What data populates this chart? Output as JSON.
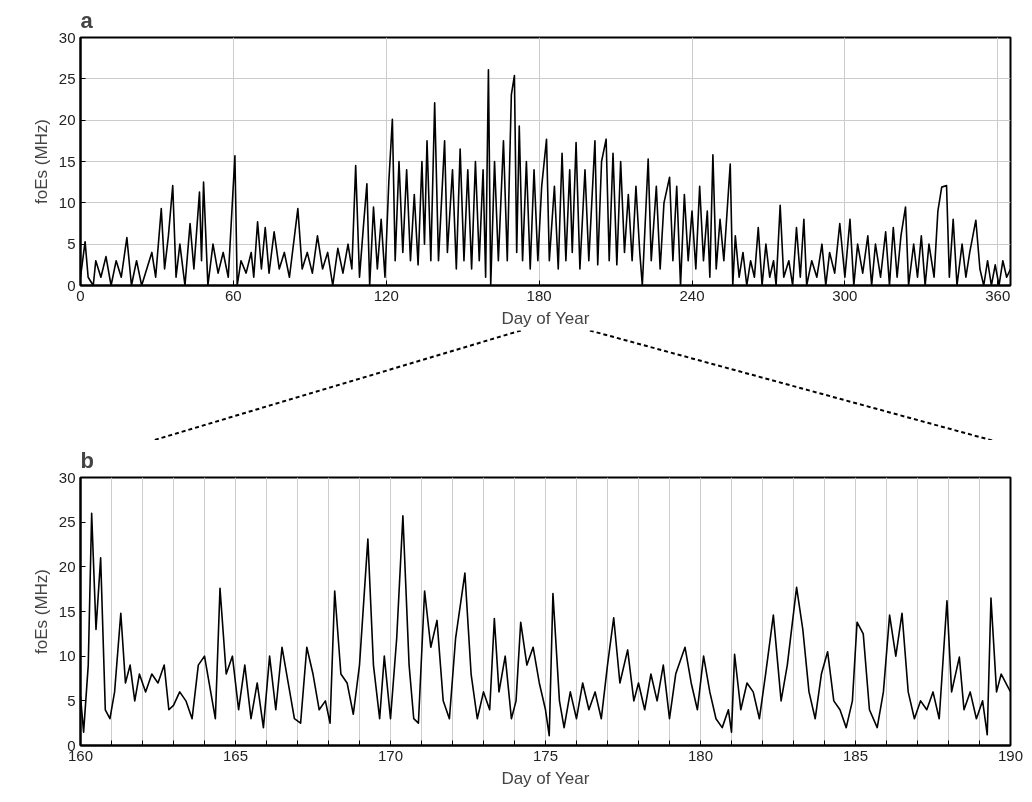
{
  "chart_data": [
    {
      "type": "line",
      "title": "a",
      "xlabel": "Day of Year",
      "ylabel": "foEs (MHz)",
      "xlim": [
        0,
        365
      ],
      "ylim": [
        0,
        30
      ],
      "xticks": [
        0,
        60,
        120,
        180,
        240,
        300,
        360
      ],
      "yticks": [
        0,
        5,
        10,
        15,
        20,
        25,
        30
      ],
      "grid": true,
      "color": "#000000",
      "x": [
        0,
        1.8,
        3,
        5,
        6,
        8,
        10,
        12,
        14,
        16,
        18.2,
        20,
        22,
        24,
        26,
        28,
        29.5,
        31.7,
        33,
        34.5,
        36.2,
        37.5,
        39,
        41,
        43,
        44.5,
        46.7,
        47.5,
        48.3,
        50,
        52,
        54,
        56,
        58,
        60.6,
        61.5,
        63,
        65,
        67,
        68,
        69.5,
        71,
        72.5,
        74,
        76,
        78,
        80,
        82,
        85.3,
        87,
        89,
        91,
        93,
        95,
        97,
        99,
        101,
        103,
        105,
        106.5,
        108,
        109.5,
        111,
        112.4,
        113.5,
        115,
        116.5,
        118,
        119.5,
        121,
        122.4,
        123.5,
        125,
        126.5,
        128,
        129.5,
        131,
        132.5,
        134,
        135,
        136,
        137.5,
        139,
        140.5,
        142.9,
        144,
        146,
        147.5,
        149,
        150.5,
        152,
        153.5,
        155,
        156.5,
        158,
        159,
        160.1,
        161,
        162.5,
        164,
        166,
        167.5,
        169.1,
        170.3,
        171.2,
        172.2,
        173.5,
        175,
        176.5,
        178,
        179.5,
        181,
        182.9,
        184,
        186,
        187.5,
        189,
        190.5,
        192,
        193,
        194.5,
        196,
        198,
        199.5,
        201.9,
        203,
        204.5,
        206.3,
        207.5,
        209,
        210.5,
        212,
        213.5,
        215,
        216.5,
        218,
        219.5,
        220.5,
        222.8,
        224,
        226,
        227.5,
        229,
        231.2,
        232.5,
        234,
        235.5,
        237,
        238.5,
        240,
        241.5,
        243,
        244.5,
        246,
        247,
        248.2,
        249.5,
        251,
        252.5,
        255,
        256,
        257,
        258.5,
        260,
        261.5,
        263,
        264.5,
        266,
        267.5,
        269,
        270.5,
        272,
        273,
        274.6,
        276,
        278,
        279.5,
        281,
        282.5,
        283.9,
        285,
        287,
        289,
        291,
        292.5,
        294,
        296,
        298,
        300,
        302,
        303.5,
        305,
        307,
        309,
        310.5,
        312,
        314,
        316,
        317.5,
        319,
        320.5,
        322,
        323.8,
        325,
        327,
        328.5,
        330,
        331.5,
        333,
        335,
        336.5,
        338,
        339.9,
        341,
        342.5,
        344,
        346,
        347.5,
        349,
        351.4,
        353,
        354.5,
        356,
        357.5,
        359,
        360.5,
        362,
        363.5,
        365
      ],
      "values": [
        1,
        5.3,
        1,
        0,
        3,
        1,
        3.5,
        0,
        3,
        1,
        5.8,
        0,
        3,
        0,
        2,
        4,
        1,
        9.3,
        2,
        6,
        12.1,
        1,
        5,
        0,
        7.5,
        2,
        11.3,
        3,
        12.5,
        0,
        5,
        1.5,
        4,
        1,
        15.7,
        0,
        3,
        1.5,
        4,
        1,
        7.7,
        2,
        7,
        1.5,
        6.5,
        2,
        4,
        1,
        9.3,
        2,
        4,
        1.5,
        6,
        2,
        4,
        0,
        4.5,
        1.5,
        5,
        2,
        14.5,
        1,
        7,
        12.3,
        0,
        9.5,
        2,
        8,
        1,
        12.5,
        20.1,
        3,
        15,
        4,
        14,
        3,
        11,
        2.5,
        15,
        5,
        17.5,
        3,
        22.1,
        3,
        17.5,
        4,
        14,
        2,
        16.5,
        3,
        14,
        2,
        15,
        3,
        14,
        1,
        26.1,
        0,
        15,
        3,
        17.5,
        3,
        23.1,
        25.4,
        4,
        19.3,
        3,
        15,
        2,
        14,
        3,
        12,
        17.7,
        3,
        12,
        2,
        16,
        3,
        14,
        4,
        17.3,
        2,
        14,
        3,
        17.5,
        2.5,
        15,
        17.7,
        3,
        16,
        2.5,
        15,
        4,
        11,
        3,
        12,
        4,
        0,
        15.3,
        3,
        12,
        2,
        10,
        13.1,
        3,
        12,
        0,
        11,
        3,
        9,
        2,
        12,
        3,
        9,
        1,
        15.8,
        2,
        8,
        3,
        14.7,
        0,
        6,
        1,
        4,
        0,
        3,
        1,
        7,
        0,
        5,
        1,
        3,
        0,
        9.7,
        1,
        3,
        0,
        7,
        1,
        8,
        0,
        3,
        1,
        5,
        0,
        4,
        1.5,
        7.5,
        1,
        8,
        0,
        5,
        1.5,
        6,
        0,
        5,
        1,
        6.5,
        0,
        7,
        1,
        6,
        9.5,
        0,
        5,
        1,
        6,
        0,
        5,
        1,
        9,
        11.9,
        12.1,
        1,
        8,
        0,
        5,
        1,
        4,
        7.9,
        2,
        0,
        3,
        0,
        2.5,
        0,
        3,
        1,
        2
      ]
    },
    {
      "type": "line",
      "title": "b",
      "xlabel": "Day of Year",
      "ylabel": "foEs (MHz)",
      "xlim": [
        160,
        190
      ],
      "ylim": [
        0,
        30
      ],
      "xticks": [
        160,
        {
          "value": 161,
          "label": null
        },
        {
          "value": 162,
          "label": null
        },
        {
          "value": 163,
          "label": null
        },
        {
          "value": 164,
          "label": null
        },
        165,
        {
          "value": 166,
          "label": null
        },
        {
          "value": 167,
          "label": null
        },
        {
          "value": 168,
          "label": null
        },
        {
          "value": 169,
          "label": null
        },
        170,
        {
          "value": 171,
          "label": null
        },
        {
          "value": 172,
          "label": null
        },
        {
          "value": 173,
          "label": null
        },
        {
          "value": 174,
          "label": null
        },
        175,
        {
          "value": 176,
          "label": null
        },
        {
          "value": 177,
          "label": null
        },
        {
          "value": 178,
          "label": null
        },
        {
          "value": 179,
          "label": null
        },
        180,
        {
          "value": 181,
          "label": null
        },
        {
          "value": 182,
          "label": null
        },
        {
          "value": 183,
          "label": null
        },
        {
          "value": 184,
          "label": null
        },
        185,
        {
          "value": 186,
          "label": null
        },
        {
          "value": 187,
          "label": null
        },
        {
          "value": 188,
          "label": null
        },
        {
          "value": 189,
          "label": null
        },
        190
      ],
      "yticks": [
        0,
        5,
        10,
        15,
        20,
        25,
        30
      ],
      "grid": "x",
      "color": "#000000",
      "x": [
        160.0,
        160.1,
        160.25,
        160.36,
        160.5,
        160.65,
        160.8,
        160.95,
        161.1,
        161.3,
        161.45,
        161.6,
        161.75,
        161.9,
        162.1,
        162.3,
        162.5,
        162.7,
        162.85,
        163.0,
        163.2,
        163.4,
        163.6,
        163.8,
        164.0,
        164.2,
        164.35,
        164.5,
        164.7,
        164.9,
        165.1,
        165.3,
        165.5,
        165.7,
        165.9,
        166.1,
        166.3,
        166.5,
        166.7,
        166.9,
        167.1,
        167.3,
        167.5,
        167.7,
        167.9,
        168.05,
        168.2,
        168.4,
        168.6,
        168.8,
        169.0,
        169.27,
        169.45,
        169.65,
        169.8,
        170.0,
        170.2,
        170.4,
        170.6,
        170.75,
        170.9,
        171.1,
        171.3,
        171.5,
        171.7,
        171.9,
        172.1,
        172.4,
        172.6,
        172.8,
        173.0,
        173.2,
        173.35,
        173.5,
        173.7,
        173.9,
        174.05,
        174.2,
        174.4,
        174.6,
        174.8,
        175.0,
        175.12,
        175.24,
        175.45,
        175.6,
        175.8,
        176.0,
        176.2,
        176.4,
        176.6,
        176.8,
        177.0,
        177.2,
        177.4,
        177.65,
        177.85,
        178.0,
        178.2,
        178.4,
        178.6,
        178.8,
        179.0,
        179.2,
        179.5,
        179.7,
        179.9,
        180.1,
        180.3,
        180.5,
        180.7,
        180.9,
        181.0,
        181.1,
        181.3,
        181.5,
        181.7,
        181.9,
        182.1,
        182.35,
        182.6,
        182.8,
        183.1,
        183.3,
        183.5,
        183.7,
        183.9,
        184.1,
        184.3,
        184.5,
        184.7,
        184.9,
        185.05,
        185.25,
        185.45,
        185.7,
        185.9,
        186.1,
        186.3,
        186.5,
        186.7,
        186.9,
        187.1,
        187.3,
        187.5,
        187.7,
        187.95,
        188.1,
        188.35,
        188.5,
        188.7,
        188.9,
        189.1,
        189.25,
        189.37,
        189.55,
        189.7,
        190.0
      ],
      "values": [
        5.5,
        1.5,
        9,
        26,
        13,
        21,
        4,
        3,
        6,
        14.8,
        7,
        9,
        5,
        8,
        6,
        8,
        7,
        9,
        4,
        4.5,
        6,
        5,
        3,
        9,
        10,
        6,
        3,
        17.6,
        8,
        10,
        4,
        9,
        3,
        7,
        2,
        10,
        4,
        11,
        7,
        3,
        2.5,
        11,
        8,
        4,
        5,
        2.5,
        17.3,
        8,
        7,
        3.5,
        9,
        23.1,
        9,
        3,
        10,
        3,
        12,
        25.7,
        9,
        3,
        2.5,
        17.3,
        11,
        14,
        5,
        3,
        12,
        19.3,
        8,
        3,
        6,
        4,
        14.2,
        6,
        10,
        3,
        5,
        13.8,
        9,
        11,
        7,
        4,
        1.1,
        17,
        5,
        2,
        6,
        3,
        7,
        4,
        6,
        3,
        9,
        14.3,
        7,
        10.7,
        5,
        7,
        4,
        8,
        5,
        9,
        3,
        8,
        11,
        7,
        4,
        10,
        6,
        3,
        2,
        4,
        1.5,
        10.2,
        4,
        7,
        6,
        3,
        8,
        14.6,
        5,
        9,
        17.7,
        13,
        6,
        3,
        8,
        10.5,
        5,
        4,
        2,
        5,
        13.8,
        12.5,
        4,
        2,
        6,
        14.6,
        10,
        14.8,
        6,
        3,
        5,
        4,
        6,
        3,
        16.2,
        6,
        9.9,
        4,
        6,
        3,
        5,
        1.2,
        16.5,
        6,
        8,
        6
      ]
    }
  ]
}
